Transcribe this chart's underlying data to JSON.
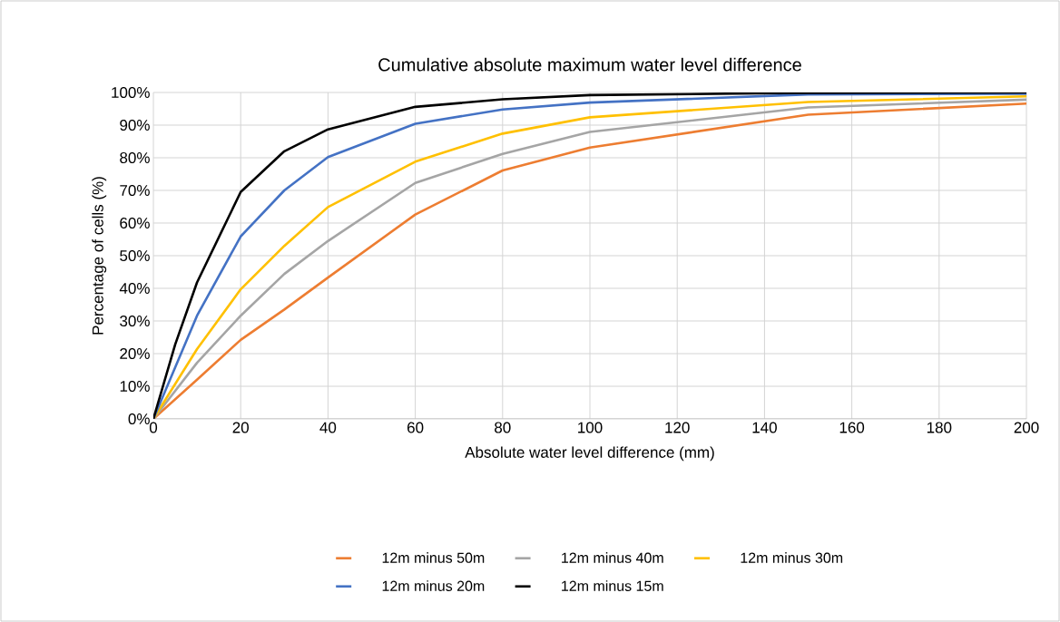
{
  "chart_data": {
    "type": "line",
    "title": "Cumulative absolute maximum water level difference",
    "xlabel": "Absolute water level difference (mm)",
    "ylabel": "Percentage of cells (%)",
    "xlim": [
      0,
      200
    ],
    "xticks": [
      0,
      20,
      40,
      60,
      80,
      100,
      120,
      140,
      160,
      180,
      200
    ],
    "ylim": [
      0,
      100
    ],
    "yticks": [
      {
        "value": 0,
        "label": "0%"
      },
      {
        "value": 10,
        "label": "10%"
      },
      {
        "value": 20,
        "label": "20%"
      },
      {
        "value": 30,
        "label": "30%"
      },
      {
        "value": 40,
        "label": "40%"
      },
      {
        "value": 50,
        "label": "50%"
      },
      {
        "value": 60,
        "label": "60%"
      },
      {
        "value": 70,
        "label": "70%"
      },
      {
        "value": 80,
        "label": "80%"
      },
      {
        "value": 90,
        "label": "90%"
      },
      {
        "value": 100,
        "label": "100%"
      }
    ],
    "grid": true,
    "legend": "bottom",
    "marker": "none",
    "line_style": "solid",
    "series": [
      {
        "name": "12m minus 50m",
        "color": "#ed7d31",
        "x": [
          0,
          10,
          20,
          30,
          40,
          60,
          80,
          100,
          150,
          200
        ],
        "values": [
          0,
          12,
          24.2,
          33.5,
          43.3,
          62.6,
          76.1,
          83.1,
          93.2,
          96.6
        ]
      },
      {
        "name": "12m minus 40m",
        "color": "#a5a5a5",
        "x": [
          0,
          10,
          20,
          30,
          40,
          60,
          80,
          100,
          150,
          200
        ],
        "values": [
          0,
          17.2,
          31.6,
          44.4,
          54.5,
          72.3,
          81.2,
          87.9,
          95.4,
          97.8
        ]
      },
      {
        "name": "12m minus 30m",
        "color": "#ffc000",
        "x": [
          0,
          10,
          20,
          30,
          40,
          60,
          80,
          100,
          150,
          200
        ],
        "values": [
          0,
          21.4,
          39.7,
          53,
          64.9,
          78.8,
          87.4,
          92.4,
          97.1,
          98.8
        ]
      },
      {
        "name": "12m minus 20m",
        "color": "#4472c4",
        "x": [
          0,
          10,
          20,
          30,
          40,
          60,
          80,
          100,
          150,
          200
        ],
        "values": [
          0,
          31.6,
          55.9,
          70,
          80.2,
          90.4,
          94.8,
          96.9,
          99.4,
          99.6
        ]
      },
      {
        "name": "12m minus 15m",
        "color": "#000000",
        "x": [
          0,
          5,
          10,
          20,
          30,
          40,
          60,
          80,
          100,
          150,
          200
        ],
        "values": [
          0,
          22.8,
          41.8,
          69.5,
          82,
          88.7,
          95.6,
          97.9,
          99.2,
          99.9,
          100
        ]
      }
    ]
  }
}
